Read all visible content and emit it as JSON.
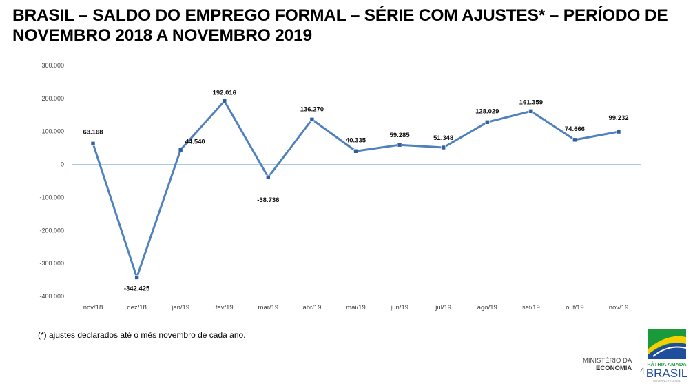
{
  "title": "BRASIL – SALDO DO EMPREGO FORMAL – SÉRIE COM AJUSTES* – PERÍODO DE NOVEMBRO 2018 A NOVEMBRO 2019",
  "footnote": "(*) ajustes declarados até o mês novembro de cada ano.",
  "ministry": {
    "line1": "MINISTÉRIO DA",
    "line2": "ECONOMIA"
  },
  "page_number": "4",
  "logo": {
    "line1": "PÁTRIA AMADA",
    "line2": "BRASIL",
    "line3": "GOVERNO FEDERAL"
  },
  "colors": {
    "line": "#4f81bd",
    "zero_line": "#9dc3e6"
  },
  "chart_data": {
    "type": "line",
    "title": "",
    "xlabel": "",
    "ylabel": "",
    "categories": [
      "nov/18",
      "dez/18",
      "jan/19",
      "fev/19",
      "mar/19",
      "abr/19",
      "mai/19",
      "jun/19",
      "jul/19",
      "ago/19",
      "set/19",
      "out/19",
      "nov/19"
    ],
    "values": [
      63168,
      -342425,
      44540,
      192016,
      -38736,
      136270,
      40335,
      59285,
      51348,
      128029,
      161359,
      74666,
      99232
    ],
    "data_labels": [
      "63.168",
      "-342.425",
      "44.540",
      "192.016",
      "-38.736",
      "136.270",
      "40.335",
      "59.285",
      "51.348",
      "128.029",
      "161.359",
      "74.666",
      "99.232"
    ],
    "ylim": [
      -400000,
      300000
    ],
    "yticks": [
      300000,
      200000,
      100000,
      0,
      -100000,
      -200000,
      -300000,
      -400000
    ],
    "ytick_labels": [
      "300.000",
      "200.000",
      "100.000",
      "0",
      "-100.000",
      "-200.000",
      "-300.000",
      "-400.000"
    ],
    "grid": false,
    "legend": "none"
  }
}
